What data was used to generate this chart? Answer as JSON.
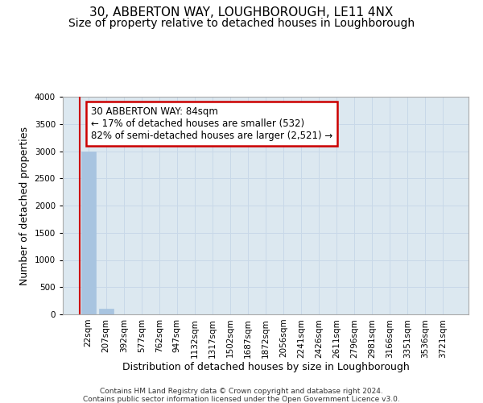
{
  "title": "30, ABBERTON WAY, LOUGHBOROUGH, LE11 4NX",
  "subtitle": "Size of property relative to detached houses in Loughborough",
  "xlabel": "Distribution of detached houses by size in Loughborough",
  "ylabel": "Number of detached properties",
  "footer_line1": "Contains HM Land Registry data © Crown copyright and database right 2024.",
  "footer_line2": "Contains public sector information licensed under the Open Government Licence v3.0.",
  "categories": [
    "22sqm",
    "207sqm",
    "392sqm",
    "577sqm",
    "762sqm",
    "947sqm",
    "1132sqm",
    "1317sqm",
    "1502sqm",
    "1687sqm",
    "1872sqm",
    "2056sqm",
    "2241sqm",
    "2426sqm",
    "2611sqm",
    "2796sqm",
    "2981sqm",
    "3166sqm",
    "3351sqm",
    "3536sqm",
    "3721sqm"
  ],
  "values": [
    3000,
    105,
    5,
    2,
    1,
    1,
    1,
    1,
    0,
    0,
    0,
    0,
    0,
    0,
    0,
    0,
    0,
    0,
    0,
    0,
    0
  ],
  "bar_color": "#a8c4e0",
  "bar_edge_color": "#a8c4e0",
  "annotation_line1": "30 ABBERTON WAY: 84sqm",
  "annotation_line2": "← 17% of detached houses are smaller (532)",
  "annotation_line3": "82% of semi-detached houses are larger (2,521) →",
  "annotation_box_color": "#cc0000",
  "red_line_x": -0.5,
  "ylim": [
    0,
    4000
  ],
  "yticks": [
    0,
    500,
    1000,
    1500,
    2000,
    2500,
    3000,
    3500,
    4000
  ],
  "grid_color": "#c8d8e8",
  "bg_color": "#dce8f0",
  "title_fontsize": 11,
  "subtitle_fontsize": 10,
  "tick_fontsize": 7.5,
  "ylabel_fontsize": 9,
  "xlabel_fontsize": 9,
  "annotation_fontsize": 8.5
}
